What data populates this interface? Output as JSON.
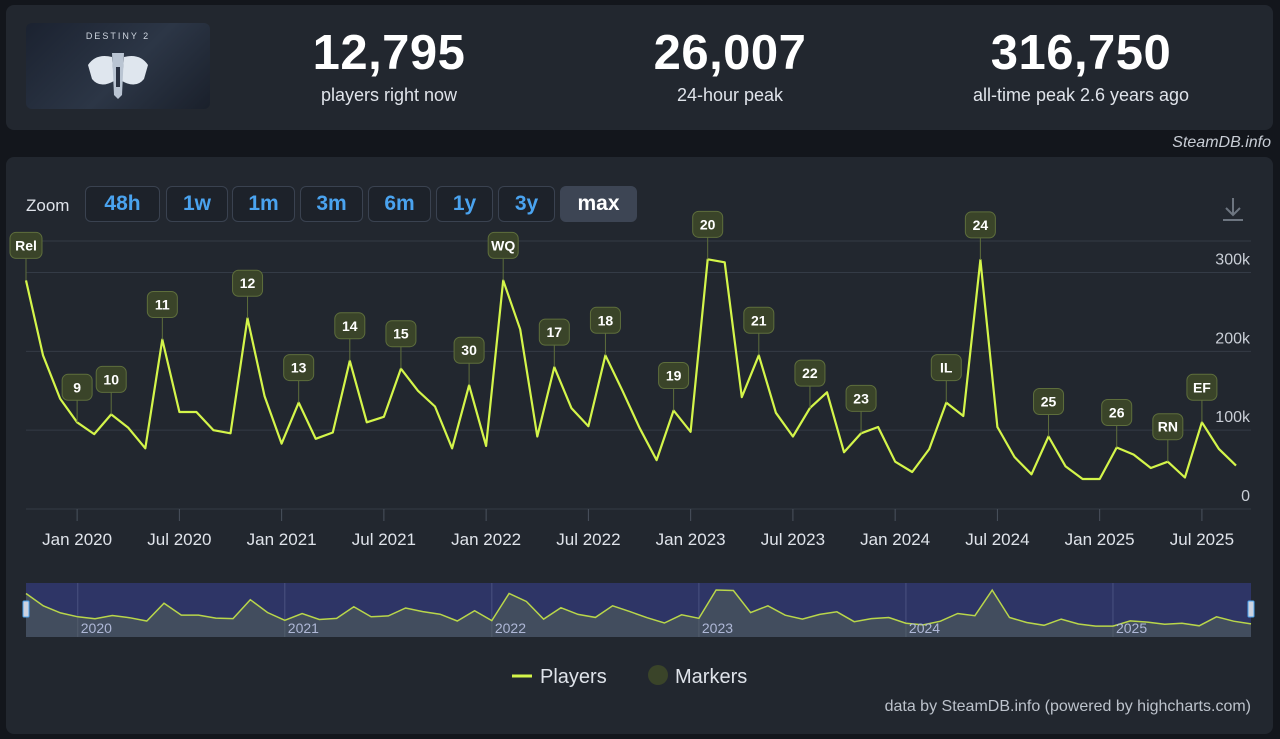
{
  "game": {
    "logo_text": "DESTINY 2",
    "logo_name": "destiny-2-logo"
  },
  "stats": [
    {
      "value": "12,795",
      "label": "players right now"
    },
    {
      "value": "26,007",
      "label": "24-hour peak"
    },
    {
      "value": "316,750",
      "label": "all-time peak 2.6 years ago"
    }
  ],
  "credit_top": "SteamDB.info",
  "zoom": {
    "label": "Zoom",
    "buttons": [
      "48h",
      "1w",
      "1m",
      "3m",
      "6m",
      "1y",
      "3y",
      "max"
    ],
    "active": "max"
  },
  "download_icon": "download-icon",
  "colors": {
    "line": "#d4f54a",
    "marker_bg": "#3a4429",
    "marker_border": "#5e6e3c",
    "navigator_bg": "#2e3566"
  },
  "chart_data": {
    "type": "line",
    "series": [
      {
        "name": "Players",
        "values": [
          [
            "2019-10-01",
            290000
          ],
          [
            "2019-11-01",
            195000
          ],
          [
            "2019-12-01",
            140000
          ],
          [
            "2020-01-01",
            110000
          ],
          [
            "2020-02-01",
            95000
          ],
          [
            "2020-03-01",
            120000
          ],
          [
            "2020-04-01",
            103000
          ],
          [
            "2020-05-01",
            77000
          ],
          [
            "2020-06-01",
            215000
          ],
          [
            "2020-07-01",
            123000
          ],
          [
            "2020-08-01",
            123000
          ],
          [
            "2020-09-01",
            100000
          ],
          [
            "2020-10-01",
            96000
          ],
          [
            "2020-11-01",
            242000
          ],
          [
            "2020-12-01",
            143000
          ],
          [
            "2021-01-01",
            83000
          ],
          [
            "2021-02-01",
            135000
          ],
          [
            "2021-03-01",
            89000
          ],
          [
            "2021-04-01",
            97000
          ],
          [
            "2021-05-01",
            188000
          ],
          [
            "2021-06-01",
            110000
          ],
          [
            "2021-07-01",
            117000
          ],
          [
            "2021-08-01",
            178000
          ],
          [
            "2021-09-01",
            150000
          ],
          [
            "2021-10-01",
            130000
          ],
          [
            "2021-11-01",
            77000
          ],
          [
            "2021-12-01",
            157000
          ],
          [
            "2022-01-01",
            80000
          ],
          [
            "2022-02-01",
            290000
          ],
          [
            "2022-03-01",
            228000
          ],
          [
            "2022-04-01",
            92000
          ],
          [
            "2022-05-01",
            180000
          ],
          [
            "2022-06-01",
            128000
          ],
          [
            "2022-07-01",
            105000
          ],
          [
            "2022-08-01",
            195000
          ],
          [
            "2022-09-01",
            150000
          ],
          [
            "2022-10-01",
            103000
          ],
          [
            "2022-11-01",
            62000
          ],
          [
            "2022-12-01",
            125000
          ],
          [
            "2023-01-01",
            98000
          ],
          [
            "2023-02-01",
            316750
          ],
          [
            "2023-03-01",
            313000
          ],
          [
            "2023-04-01",
            142000
          ],
          [
            "2023-05-01",
            195000
          ],
          [
            "2023-06-01",
            122000
          ],
          [
            "2023-07-01",
            92000
          ],
          [
            "2023-08-01",
            128000
          ],
          [
            "2023-09-01",
            148000
          ],
          [
            "2023-10-01",
            72000
          ],
          [
            "2023-11-01",
            96000
          ],
          [
            "2023-12-01",
            104000
          ],
          [
            "2024-01-01",
            60000
          ],
          [
            "2024-02-01",
            47000
          ],
          [
            "2024-03-01",
            76000
          ],
          [
            "2024-04-01",
            135000
          ],
          [
            "2024-05-01",
            118000
          ],
          [
            "2024-06-01",
            316000
          ],
          [
            "2024-07-01",
            104000
          ],
          [
            "2024-08-01",
            66000
          ],
          [
            "2024-09-01",
            44000
          ],
          [
            "2024-10-01",
            92000
          ],
          [
            "2024-11-01",
            54000
          ],
          [
            "2024-12-01",
            38000
          ],
          [
            "2025-01-01",
            38000
          ],
          [
            "2025-02-01",
            78000
          ],
          [
            "2025-03-01",
            69000
          ],
          [
            "2025-04-01",
            52000
          ],
          [
            "2025-05-01",
            60000
          ],
          [
            "2025-06-01",
            40000
          ],
          [
            "2025-07-01",
            110000
          ],
          [
            "2025-08-01",
            76000
          ],
          [
            "2025-09-01",
            55000
          ]
        ]
      },
      {
        "name": "Markers",
        "points": [
          {
            "label": "Rel",
            "date": "2019-10-01"
          },
          {
            "label": "9",
            "date": "2020-01-01"
          },
          {
            "label": "10",
            "date": "2020-03-01"
          },
          {
            "label": "11",
            "date": "2020-06-01"
          },
          {
            "label": "12",
            "date": "2020-11-01"
          },
          {
            "label": "13",
            "date": "2021-02-01"
          },
          {
            "label": "14",
            "date": "2021-05-01"
          },
          {
            "label": "15",
            "date": "2021-08-01"
          },
          {
            "label": "30",
            "date": "2021-12-01"
          },
          {
            "label": "WQ",
            "date": "2022-02-01"
          },
          {
            "label": "17",
            "date": "2022-05-01"
          },
          {
            "label": "18",
            "date": "2022-08-01"
          },
          {
            "label": "19",
            "date": "2022-12-01"
          },
          {
            "label": "20",
            "date": "2023-02-01"
          },
          {
            "label": "21",
            "date": "2023-05-01"
          },
          {
            "label": "22",
            "date": "2023-08-01"
          },
          {
            "label": "23",
            "date": "2023-11-01"
          },
          {
            "label": "IL",
            "date": "2024-04-01"
          },
          {
            "label": "24",
            "date": "2024-06-01"
          },
          {
            "label": "25",
            "date": "2024-10-01"
          },
          {
            "label": "26",
            "date": "2025-02-01"
          },
          {
            "label": "RN",
            "date": "2025-05-01"
          },
          {
            "label": "EF",
            "date": "2025-07-01"
          }
        ]
      }
    ],
    "x_ticks": [
      "Jan 2020",
      "Jul 2020",
      "Jan 2021",
      "Jul 2021",
      "Jan 2022",
      "Jul 2022",
      "Jan 2023",
      "Jul 2023",
      "Jan 2024",
      "Jul 2024",
      "Jan 2025",
      "Jul 2025"
    ],
    "y_ticks": [
      "0",
      "100k",
      "200k",
      "300k"
    ],
    "ylim": [
      0,
      340000
    ],
    "navigator_years": [
      "2020",
      "2021",
      "2022",
      "2023",
      "2024",
      "2025"
    ],
    "legend": [
      "Players",
      "Markers"
    ],
    "legend_position": "bottom-center",
    "grid": true
  },
  "credit_bottom": "data by SteamDB.info (powered by highcharts.com)"
}
